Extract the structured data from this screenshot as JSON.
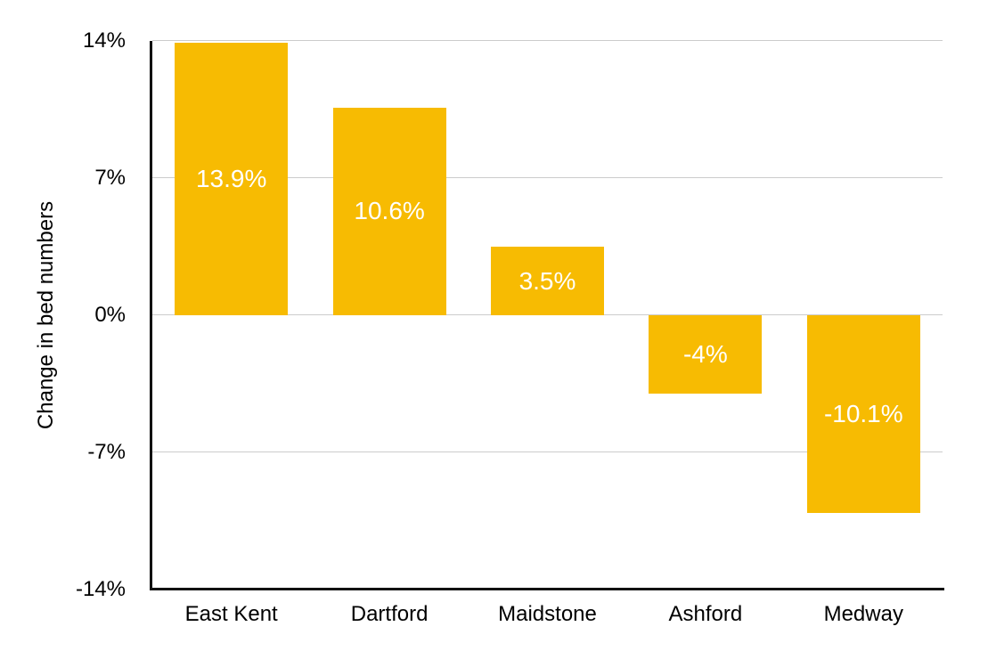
{
  "chart_data": {
    "type": "bar",
    "title": "",
    "categories": [
      "East Kent",
      "Dartford",
      "Maidstone",
      "Ashford",
      "Medway"
    ],
    "values": [
      13.9,
      10.6,
      3.5,
      -4,
      -10.1
    ],
    "bar_labels": [
      "13.9%",
      "10.6%",
      "3.5%",
      "-4%",
      "-10.1%"
    ],
    "xlabel": "",
    "ylabel": "Change in bed numbers",
    "ylim": [
      -14,
      14
    ],
    "yticks": [
      14,
      7,
      0,
      -7,
      -14
    ],
    "ytick_labels": [
      "14%",
      "7%",
      "0%",
      "-7%",
      "-14%"
    ],
    "grid": true,
    "legend": "none",
    "colors": {
      "bar": "#F7BB02",
      "bar_label": "#FFFFFF",
      "grid": "#CCCCCC",
      "axis": "#111111",
      "text": "#000000",
      "background": "#FFFFFF"
    }
  }
}
